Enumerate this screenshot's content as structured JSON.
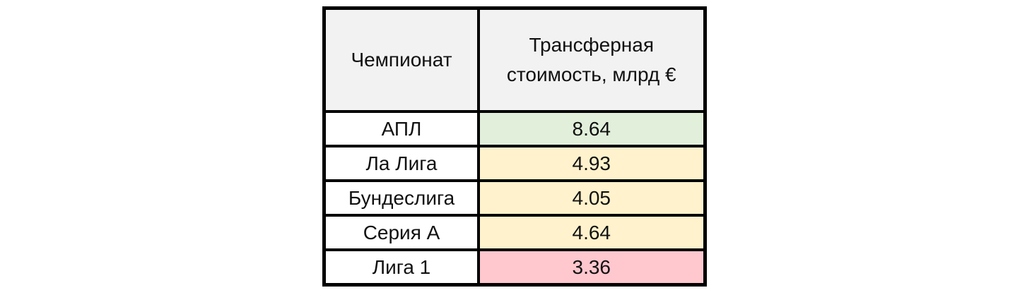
{
  "table": {
    "header": [
      "Чемпионат",
      "Трансферная стоимость, млрд €"
    ],
    "rows": [
      [
        "АПЛ",
        8.64
      ],
      [
        "Ла Лига",
        4.93
      ],
      [
        "Бундеслига",
        4.05
      ],
      [
        "Серия А",
        4.64
      ],
      [
        "Лига 1",
        3.36
      ]
    ]
  }
}
